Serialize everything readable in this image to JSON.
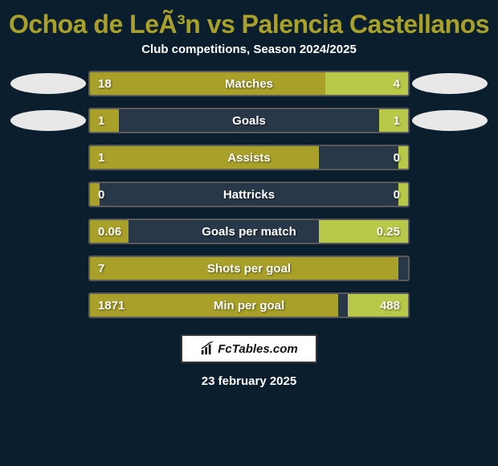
{
  "title": "Ochoa de LeÃ³n vs Palencia Castellanos",
  "subtitle": "Club competitions, Season 2024/2025",
  "footer_brand": "FcTables.com",
  "footer_date": "23 february 2025",
  "colors": {
    "background": "#0a1e2e",
    "title": "#a8a028",
    "bar_left": "#a8a028",
    "bar_right": "#b8c848",
    "bar_border": "#5a5a5a",
    "bar_bg": "#283848",
    "text": "#ffffff",
    "avatar": "#e8e8e8"
  },
  "stats": [
    {
      "label": "Matches",
      "left_val": "18",
      "right_val": "4",
      "left_pct": 74,
      "right_pct": 26,
      "show_avatars": true
    },
    {
      "label": "Goals",
      "left_val": "1",
      "right_val": "1",
      "left_pct": 9,
      "right_pct": 9,
      "show_avatars": true
    },
    {
      "label": "Assists",
      "left_val": "1",
      "right_val": "0",
      "left_pct": 72,
      "right_pct": 3,
      "show_avatars": false
    },
    {
      "label": "Hattricks",
      "left_val": "0",
      "right_val": "0",
      "left_pct": 3,
      "right_pct": 3,
      "show_avatars": false
    },
    {
      "label": "Goals per match",
      "left_val": "0.06",
      "right_val": "0.25",
      "left_pct": 12,
      "right_pct": 28,
      "show_avatars": false
    },
    {
      "label": "Shots per goal",
      "left_val": "7",
      "right_val": "",
      "left_pct": 97,
      "right_pct": 0,
      "show_avatars": false
    },
    {
      "label": "Min per goal",
      "left_val": "1871",
      "right_val": "488",
      "left_pct": 78,
      "right_pct": 19,
      "show_avatars": false
    }
  ]
}
